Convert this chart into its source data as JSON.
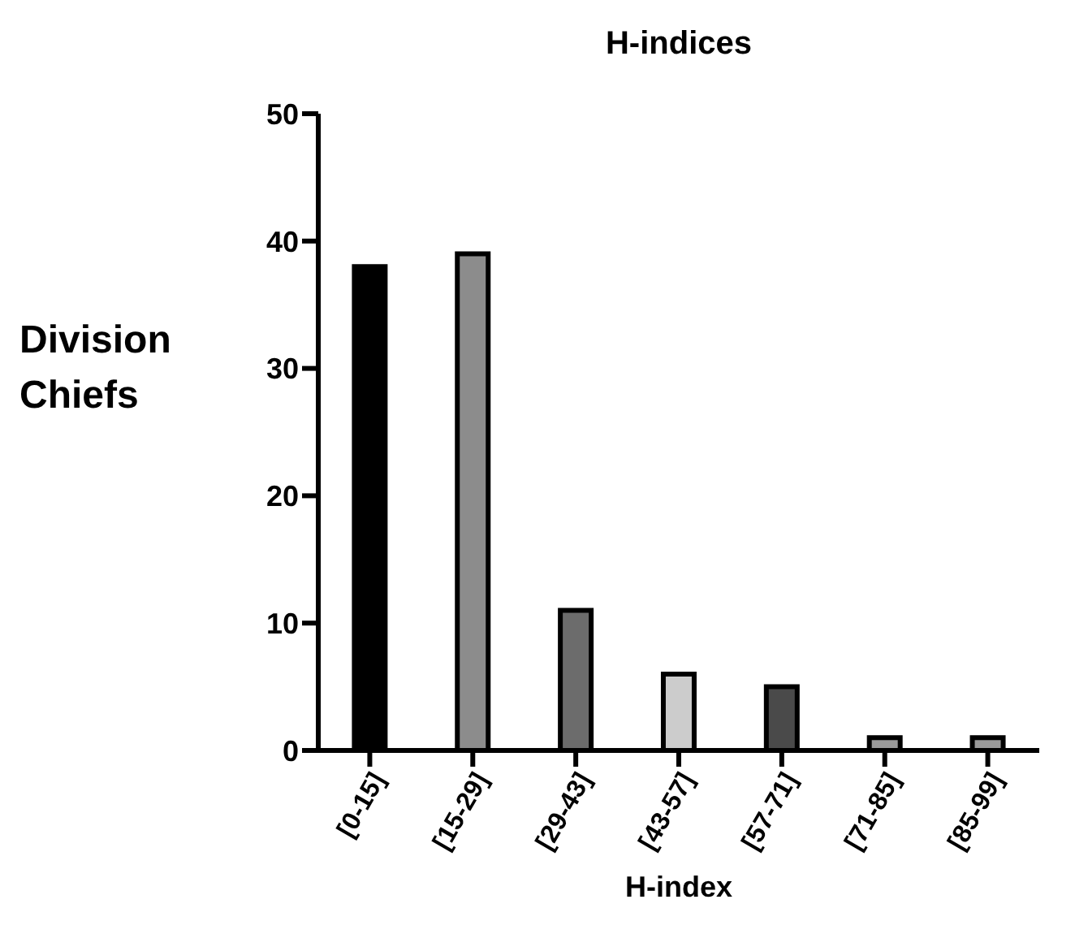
{
  "chart_data": {
    "type": "bar",
    "title": "H-indices",
    "xlabel": "H-index",
    "ylabel": "Division Chiefs",
    "categories": [
      "[0-15]",
      "[15-29]",
      "[29-43]",
      "[43-57]",
      "[57-71]",
      "[71-85]",
      "[85-99]"
    ],
    "values": [
      38,
      39,
      11,
      6,
      5,
      1,
      1
    ],
    "colors": [
      "#000000",
      "#8c8c8c",
      "#6c6c6c",
      "#cccccc",
      "#4a4a4a",
      "#9a9a9a",
      "#9a9a9a"
    ],
    "ylim": [
      0,
      50
    ],
    "yticks": [
      0,
      10,
      20,
      30,
      40,
      50
    ],
    "grid": false,
    "legend": false
  }
}
